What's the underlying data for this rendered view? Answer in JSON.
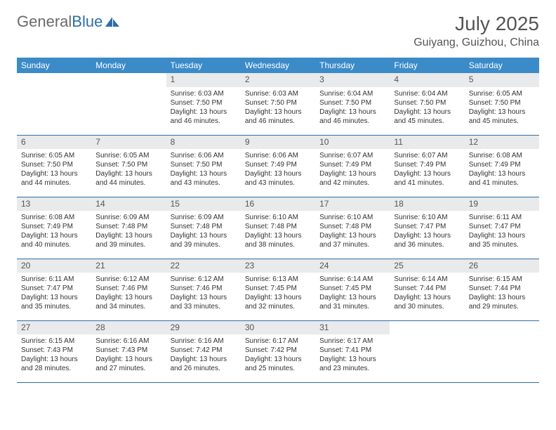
{
  "brand": {
    "name_part1": "General",
    "name_part2": "Blue"
  },
  "title": "July 2025",
  "location": "Guiyang, Guizhou, China",
  "colors": {
    "header_bg": "#3b8bc8",
    "header_text": "#ffffff",
    "daynum_bg": "#e9eaeb",
    "border": "#2d6ea8",
    "body_text": "#333333",
    "title_text": "#555555",
    "logo_gray": "#6a6a6a",
    "logo_blue": "#2d6ea8"
  },
  "weekdays": [
    "Sunday",
    "Monday",
    "Tuesday",
    "Wednesday",
    "Thursday",
    "Friday",
    "Saturday"
  ],
  "grid": {
    "leading_blanks": 2,
    "days": [
      {
        "n": 1,
        "sunrise": "6:03 AM",
        "sunset": "7:50 PM",
        "daylight": "13 hours and 46 minutes."
      },
      {
        "n": 2,
        "sunrise": "6:03 AM",
        "sunset": "7:50 PM",
        "daylight": "13 hours and 46 minutes."
      },
      {
        "n": 3,
        "sunrise": "6:04 AM",
        "sunset": "7:50 PM",
        "daylight": "13 hours and 46 minutes."
      },
      {
        "n": 4,
        "sunrise": "6:04 AM",
        "sunset": "7:50 PM",
        "daylight": "13 hours and 45 minutes."
      },
      {
        "n": 5,
        "sunrise": "6:05 AM",
        "sunset": "7:50 PM",
        "daylight": "13 hours and 45 minutes."
      },
      {
        "n": 6,
        "sunrise": "6:05 AM",
        "sunset": "7:50 PM",
        "daylight": "13 hours and 44 minutes."
      },
      {
        "n": 7,
        "sunrise": "6:05 AM",
        "sunset": "7:50 PM",
        "daylight": "13 hours and 44 minutes."
      },
      {
        "n": 8,
        "sunrise": "6:06 AM",
        "sunset": "7:50 PM",
        "daylight": "13 hours and 43 minutes."
      },
      {
        "n": 9,
        "sunrise": "6:06 AM",
        "sunset": "7:49 PM",
        "daylight": "13 hours and 43 minutes."
      },
      {
        "n": 10,
        "sunrise": "6:07 AM",
        "sunset": "7:49 PM",
        "daylight": "13 hours and 42 minutes."
      },
      {
        "n": 11,
        "sunrise": "6:07 AM",
        "sunset": "7:49 PM",
        "daylight": "13 hours and 41 minutes."
      },
      {
        "n": 12,
        "sunrise": "6:08 AM",
        "sunset": "7:49 PM",
        "daylight": "13 hours and 41 minutes."
      },
      {
        "n": 13,
        "sunrise": "6:08 AM",
        "sunset": "7:49 PM",
        "daylight": "13 hours and 40 minutes."
      },
      {
        "n": 14,
        "sunrise": "6:09 AM",
        "sunset": "7:48 PM",
        "daylight": "13 hours and 39 minutes."
      },
      {
        "n": 15,
        "sunrise": "6:09 AM",
        "sunset": "7:48 PM",
        "daylight": "13 hours and 39 minutes."
      },
      {
        "n": 16,
        "sunrise": "6:10 AM",
        "sunset": "7:48 PM",
        "daylight": "13 hours and 38 minutes."
      },
      {
        "n": 17,
        "sunrise": "6:10 AM",
        "sunset": "7:48 PM",
        "daylight": "13 hours and 37 minutes."
      },
      {
        "n": 18,
        "sunrise": "6:10 AM",
        "sunset": "7:47 PM",
        "daylight": "13 hours and 36 minutes."
      },
      {
        "n": 19,
        "sunrise": "6:11 AM",
        "sunset": "7:47 PM",
        "daylight": "13 hours and 35 minutes."
      },
      {
        "n": 20,
        "sunrise": "6:11 AM",
        "sunset": "7:47 PM",
        "daylight": "13 hours and 35 minutes."
      },
      {
        "n": 21,
        "sunrise": "6:12 AM",
        "sunset": "7:46 PM",
        "daylight": "13 hours and 34 minutes."
      },
      {
        "n": 22,
        "sunrise": "6:12 AM",
        "sunset": "7:46 PM",
        "daylight": "13 hours and 33 minutes."
      },
      {
        "n": 23,
        "sunrise": "6:13 AM",
        "sunset": "7:45 PM",
        "daylight": "13 hours and 32 minutes."
      },
      {
        "n": 24,
        "sunrise": "6:14 AM",
        "sunset": "7:45 PM",
        "daylight": "13 hours and 31 minutes."
      },
      {
        "n": 25,
        "sunrise": "6:14 AM",
        "sunset": "7:44 PM",
        "daylight": "13 hours and 30 minutes."
      },
      {
        "n": 26,
        "sunrise": "6:15 AM",
        "sunset": "7:44 PM",
        "daylight": "13 hours and 29 minutes."
      },
      {
        "n": 27,
        "sunrise": "6:15 AM",
        "sunset": "7:43 PM",
        "daylight": "13 hours and 28 minutes."
      },
      {
        "n": 28,
        "sunrise": "6:16 AM",
        "sunset": "7:43 PM",
        "daylight": "13 hours and 27 minutes."
      },
      {
        "n": 29,
        "sunrise": "6:16 AM",
        "sunset": "7:42 PM",
        "daylight": "13 hours and 26 minutes."
      },
      {
        "n": 30,
        "sunrise": "6:17 AM",
        "sunset": "7:42 PM",
        "daylight": "13 hours and 25 minutes."
      },
      {
        "n": 31,
        "sunrise": "6:17 AM",
        "sunset": "7:41 PM",
        "daylight": "13 hours and 23 minutes."
      }
    ]
  },
  "labels": {
    "sunrise": "Sunrise:",
    "sunset": "Sunset:",
    "daylight": "Daylight:"
  }
}
